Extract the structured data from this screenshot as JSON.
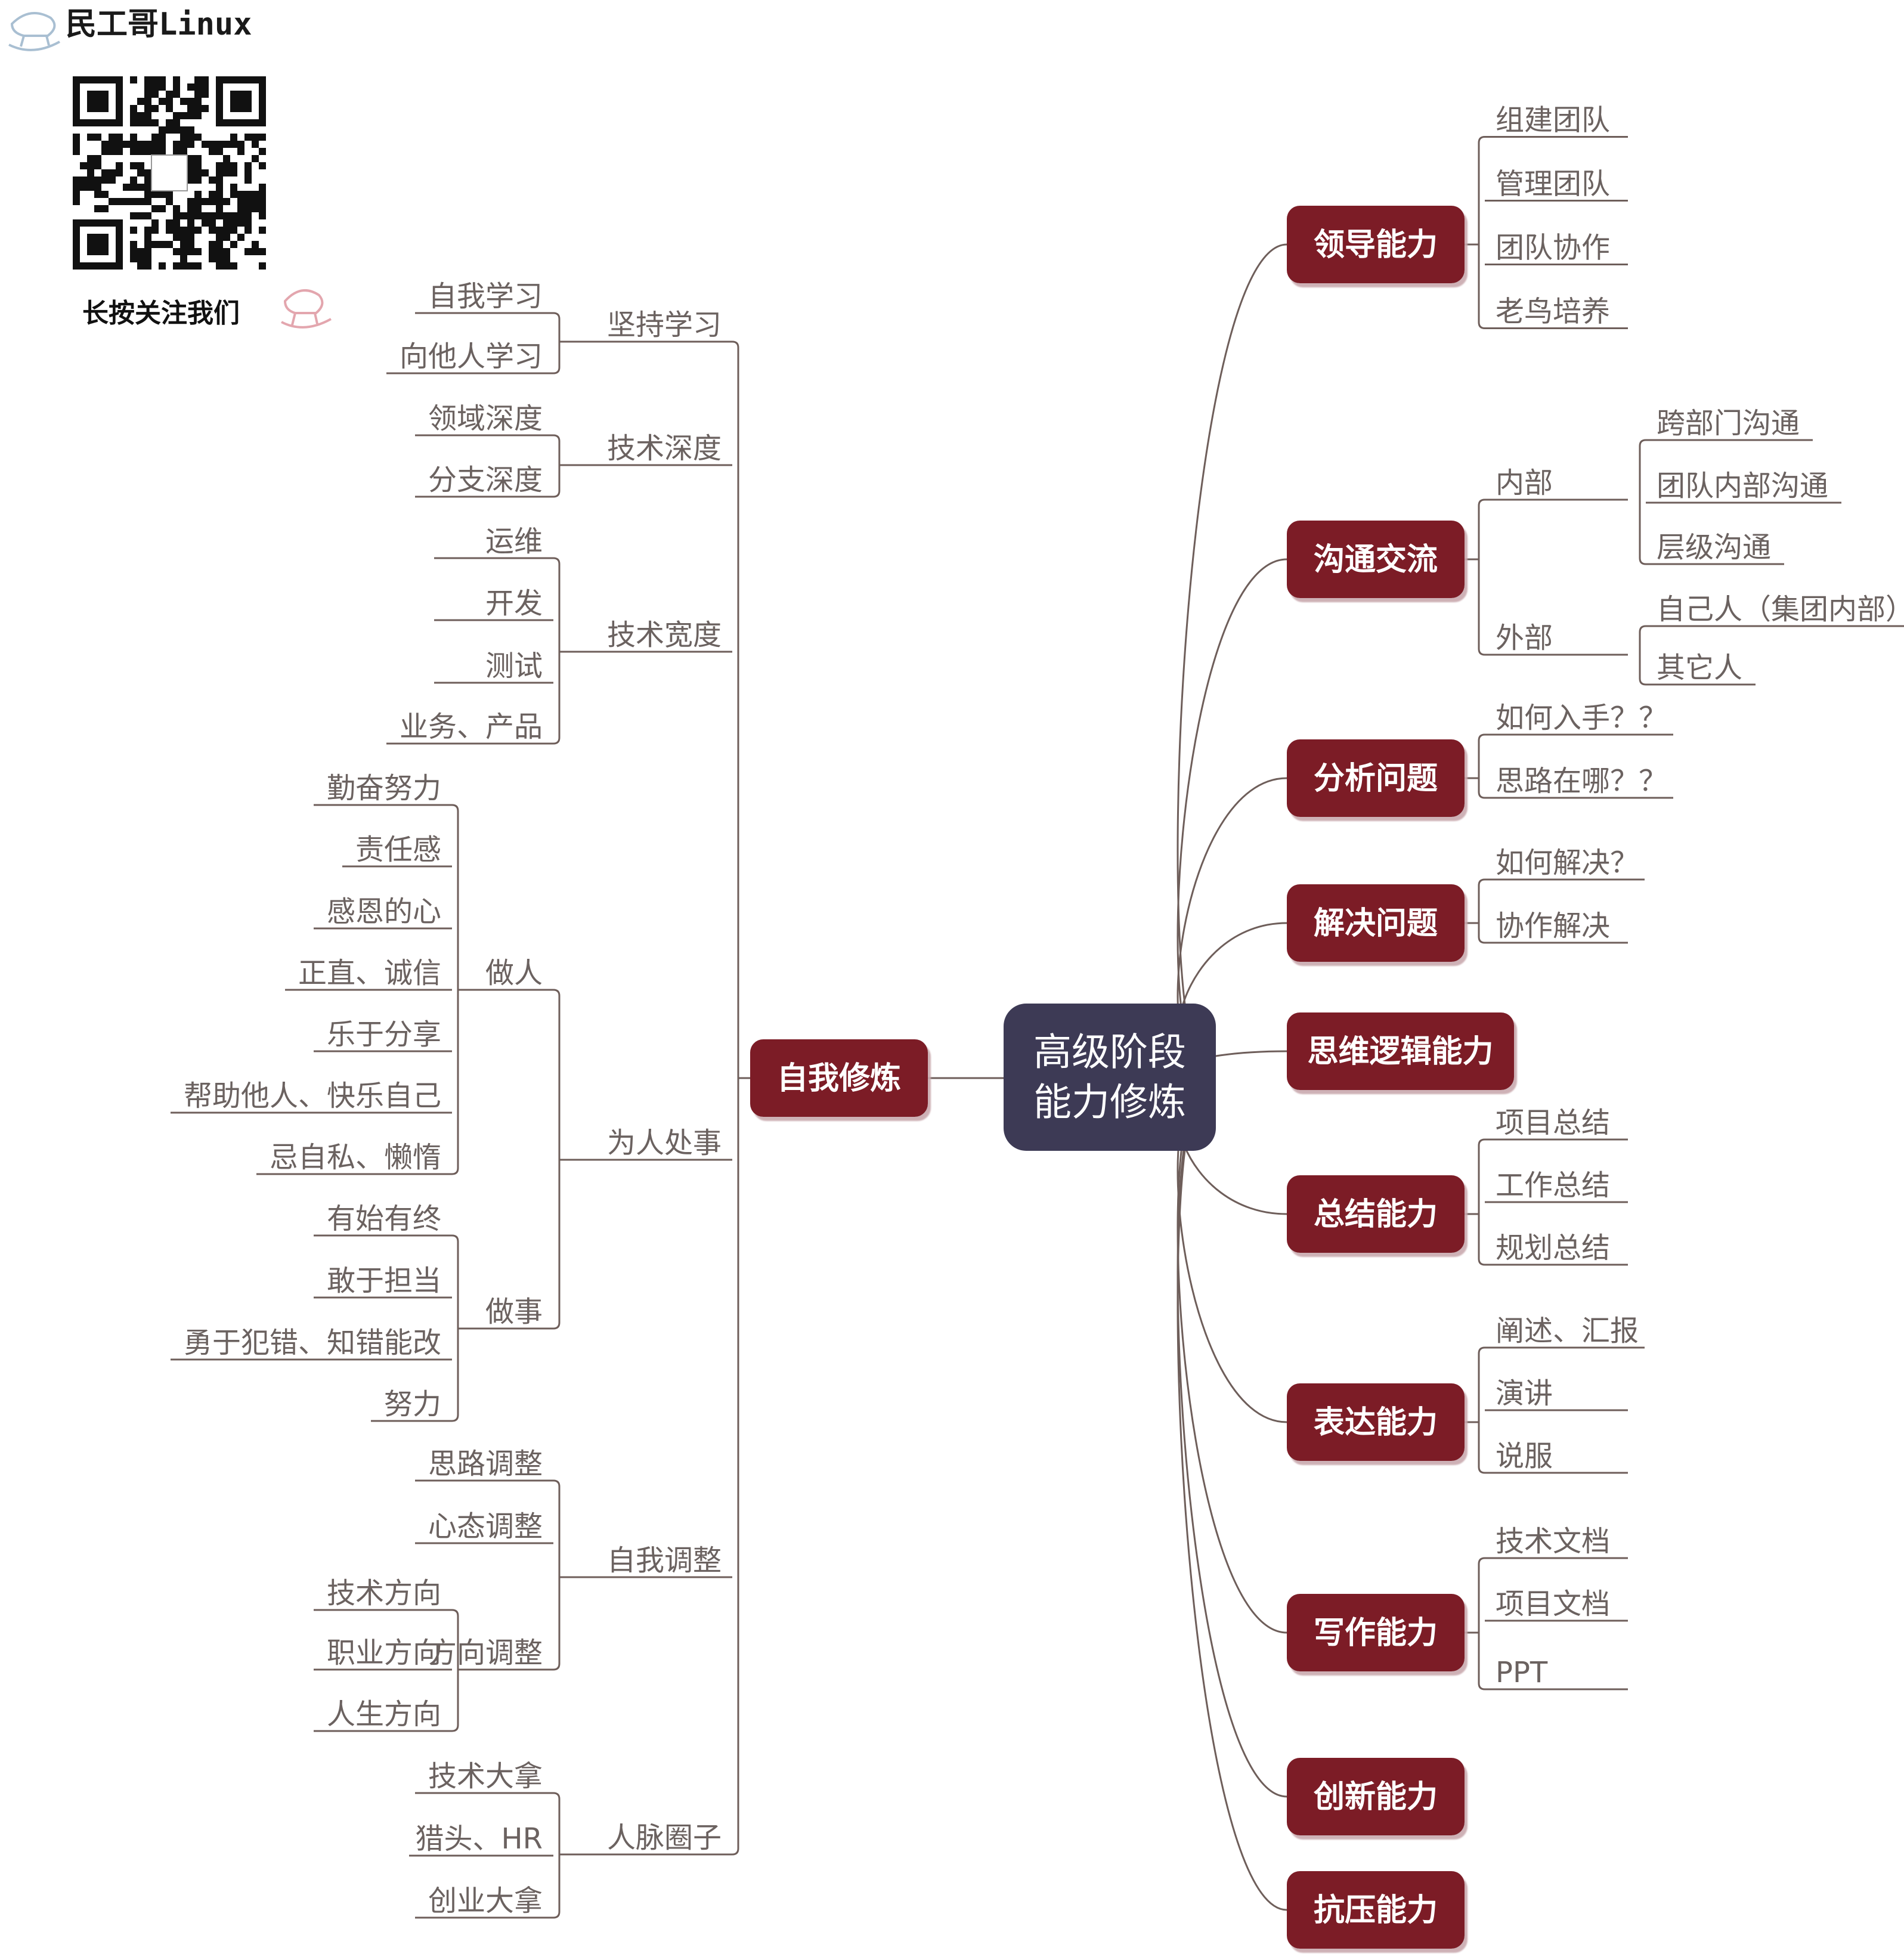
{
  "brand": {
    "name": "民工哥Linux",
    "follow_text": "长按关注我们",
    "icon": "rocking-horse-icon"
  },
  "colors": {
    "root": "#3d3a55",
    "main_node": "#7b1c27",
    "line": "#6e5e5a",
    "text": "#6b6260"
  },
  "root": "高级阶段\n能力修炼",
  "right": [
    {
      "label": "领导能力",
      "children": [
        {
          "label": "组建团队"
        },
        {
          "label": "管理团队"
        },
        {
          "label": "团队协作"
        },
        {
          "label": "老鸟培养"
        }
      ]
    },
    {
      "label": "沟通交流",
      "children": [
        {
          "label": "内部",
          "children": [
            {
              "label": "跨部门沟通"
            },
            {
              "label": "团队内部沟通"
            },
            {
              "label": "层级沟通"
            }
          ]
        },
        {
          "label": "外部",
          "children": [
            {
              "label": "自己人（集团内部）"
            },
            {
              "label": "其它人"
            }
          ]
        }
      ]
    },
    {
      "label": "分析问题",
      "children": [
        {
          "label": "如何入手？？"
        },
        {
          "label": "思路在哪？？"
        }
      ]
    },
    {
      "label": "解决问题",
      "children": [
        {
          "label": "如何解决？"
        },
        {
          "label": "协作解决"
        }
      ]
    },
    {
      "label": "思维逻辑能力"
    },
    {
      "label": "总结能力",
      "children": [
        {
          "label": "项目总结"
        },
        {
          "label": "工作总结"
        },
        {
          "label": "规划总结"
        }
      ]
    },
    {
      "label": "表达能力",
      "children": [
        {
          "label": "阐述、汇报"
        },
        {
          "label": "演讲"
        },
        {
          "label": "说服"
        }
      ]
    },
    {
      "label": "写作能力",
      "children": [
        {
          "label": "技术文档"
        },
        {
          "label": "项目文档"
        },
        {
          "label": "PPT"
        }
      ]
    },
    {
      "label": "创新能力"
    },
    {
      "label": "抗压能力"
    }
  ],
  "left": {
    "label": "自我修炼",
    "children": [
      {
        "label": "坚持学习",
        "children": [
          {
            "label": "自我学习"
          },
          {
            "label": "向他人学习"
          }
        ]
      },
      {
        "label": "技术深度",
        "children": [
          {
            "label": "领域深度"
          },
          {
            "label": "分支深度"
          }
        ]
      },
      {
        "label": "技术宽度",
        "children": [
          {
            "label": "运维"
          },
          {
            "label": "开发"
          },
          {
            "label": "测试"
          },
          {
            "label": "业务、产品"
          }
        ]
      },
      {
        "label": "为人处事",
        "children": [
          {
            "label": "做人",
            "children": [
              {
                "label": "勤奋努力"
              },
              {
                "label": "责任感"
              },
              {
                "label": "感恩的心"
              },
              {
                "label": "正直、诚信"
              },
              {
                "label": "乐于分享"
              },
              {
                "label": "帮助他人、快乐自己"
              },
              {
                "label": "忌自私、懒惰"
              }
            ]
          },
          {
            "label": "做事",
            "children": [
              {
                "label": "有始有终"
              },
              {
                "label": "敢于担当"
              },
              {
                "label": "勇于犯错、知错能改"
              },
              {
                "label": "努力"
              }
            ]
          }
        ]
      },
      {
        "label": "自我调整",
        "children": [
          {
            "label": "思路调整"
          },
          {
            "label": "心态调整"
          },
          {
            "label": "方向调整",
            "children": [
              {
                "label": "技术方向"
              },
              {
                "label": "职业方向"
              },
              {
                "label": "人生方向"
              }
            ]
          }
        ]
      },
      {
        "label": "人脉圈子",
        "children": [
          {
            "label": "技术大拿"
          },
          {
            "label": "猎头、HR"
          },
          {
            "label": "创业大拿"
          }
        ]
      }
    ]
  }
}
